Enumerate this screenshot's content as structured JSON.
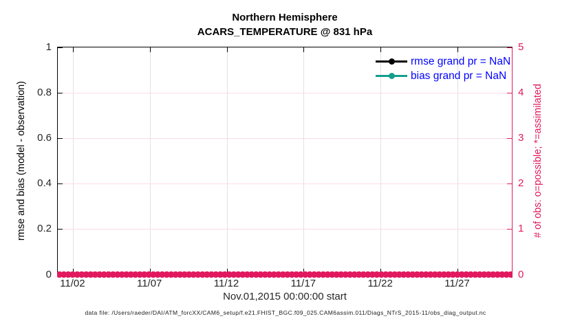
{
  "title": {
    "line1": "Northern Hemisphere",
    "line2": "ACARS_TEMPERATURE @ 831 hPa"
  },
  "axes": {
    "left": {
      "label": "rmse and bias (model - observation)",
      "tick_labels": [
        "0",
        "0.2",
        "0.4",
        "0.6",
        "0.8",
        "1"
      ],
      "tick_values": [
        0,
        0.2,
        0.4,
        0.6,
        0.8,
        1
      ],
      "range": [
        0,
        1
      ]
    },
    "right": {
      "label": "# of obs: o=possible; *=assimilated",
      "tick_labels": [
        "0",
        "1",
        "2",
        "3",
        "4",
        "5"
      ],
      "tick_values": [
        0,
        1,
        2,
        3,
        4,
        5
      ],
      "range": [
        0,
        5
      ]
    },
    "x": {
      "label": "Nov.01,2015 00:00:00 start",
      "tick_labels": [
        "11/02",
        "11/07",
        "11/12",
        "11/17",
        "11/22",
        "11/27"
      ],
      "tick_days": [
        1,
        6,
        11,
        16,
        21,
        26
      ],
      "range_days": [
        0,
        29.6
      ]
    }
  },
  "legend": {
    "text_color": "#0000FF",
    "entries": [
      {
        "label": "rmse grand pr = NaN",
        "color": "#000000",
        "marker": "filled-circle"
      },
      {
        "label": "bias grand pr = NaN",
        "color": "#139E8E",
        "marker": "filled-circle"
      }
    ]
  },
  "footer": {
    "text": "data file: /Users/raeder/DAI/ATM_forcXX/CAM6_setup/f.e21.FHIST_BGC.f09_025.CAM6assim.011/Diags_NTrS_2015-11/obs_diag_output.nc"
  },
  "colors": {
    "obs_pink": "#E1195E",
    "pink_grid": "#FADCE8",
    "gray_grid": "#E2E2E2",
    "bias_teal": "#139E8E",
    "legend_text_blue": "#0000FF",
    "tick_text": "#262626"
  },
  "chart_data": {
    "type": "line",
    "title": "Northern Hemisphere — ACARS_TEMPERATURE @ 831 hPa",
    "x_axis": {
      "label": "Nov.01,2015 00:00:00 start",
      "start": "2015-11-01 00:00:00",
      "end": "2015-11-30 (approx)",
      "tick_labels": [
        "11/02",
        "11/07",
        "11/12",
        "11/17",
        "11/22",
        "11/27"
      ]
    },
    "left_y_axis": {
      "label": "rmse and bias (model - observation)",
      "range": [
        0,
        1
      ],
      "ticks": [
        0,
        0.2,
        0.4,
        0.6,
        0.8,
        1
      ]
    },
    "right_y_axis": {
      "label": "# of obs: o=possible; *=assimilated",
      "range": [
        0,
        5
      ],
      "ticks": [
        0,
        1,
        2,
        3,
        4,
        5
      ]
    },
    "grid": true,
    "legend_position": "top-right-inside",
    "series": [
      {
        "name": "rmse grand pr = NaN",
        "axis": "left",
        "color": "#000000",
        "marker": "filled-circle",
        "values": "NaN — no curve drawn"
      },
      {
        "name": "bias grand pr = NaN",
        "axis": "left",
        "color": "#139E8E",
        "marker": "filled-circle",
        "values": "NaN — no curve drawn"
      },
      {
        "name": "# of obs assimilated (* markers)",
        "axis": "right",
        "color": "#E1195E",
        "marker": "asterisk",
        "constant_value": 0,
        "note": "dense markers at 0 for every time bin across Nov 1–30, 2015"
      },
      {
        "name": "# of obs possible (o markers)",
        "axis": "right",
        "color": "#E1195E",
        "marker": "circle",
        "constant_value": 0,
        "note": "overlapped by * markers along the zero line"
      }
    ]
  }
}
